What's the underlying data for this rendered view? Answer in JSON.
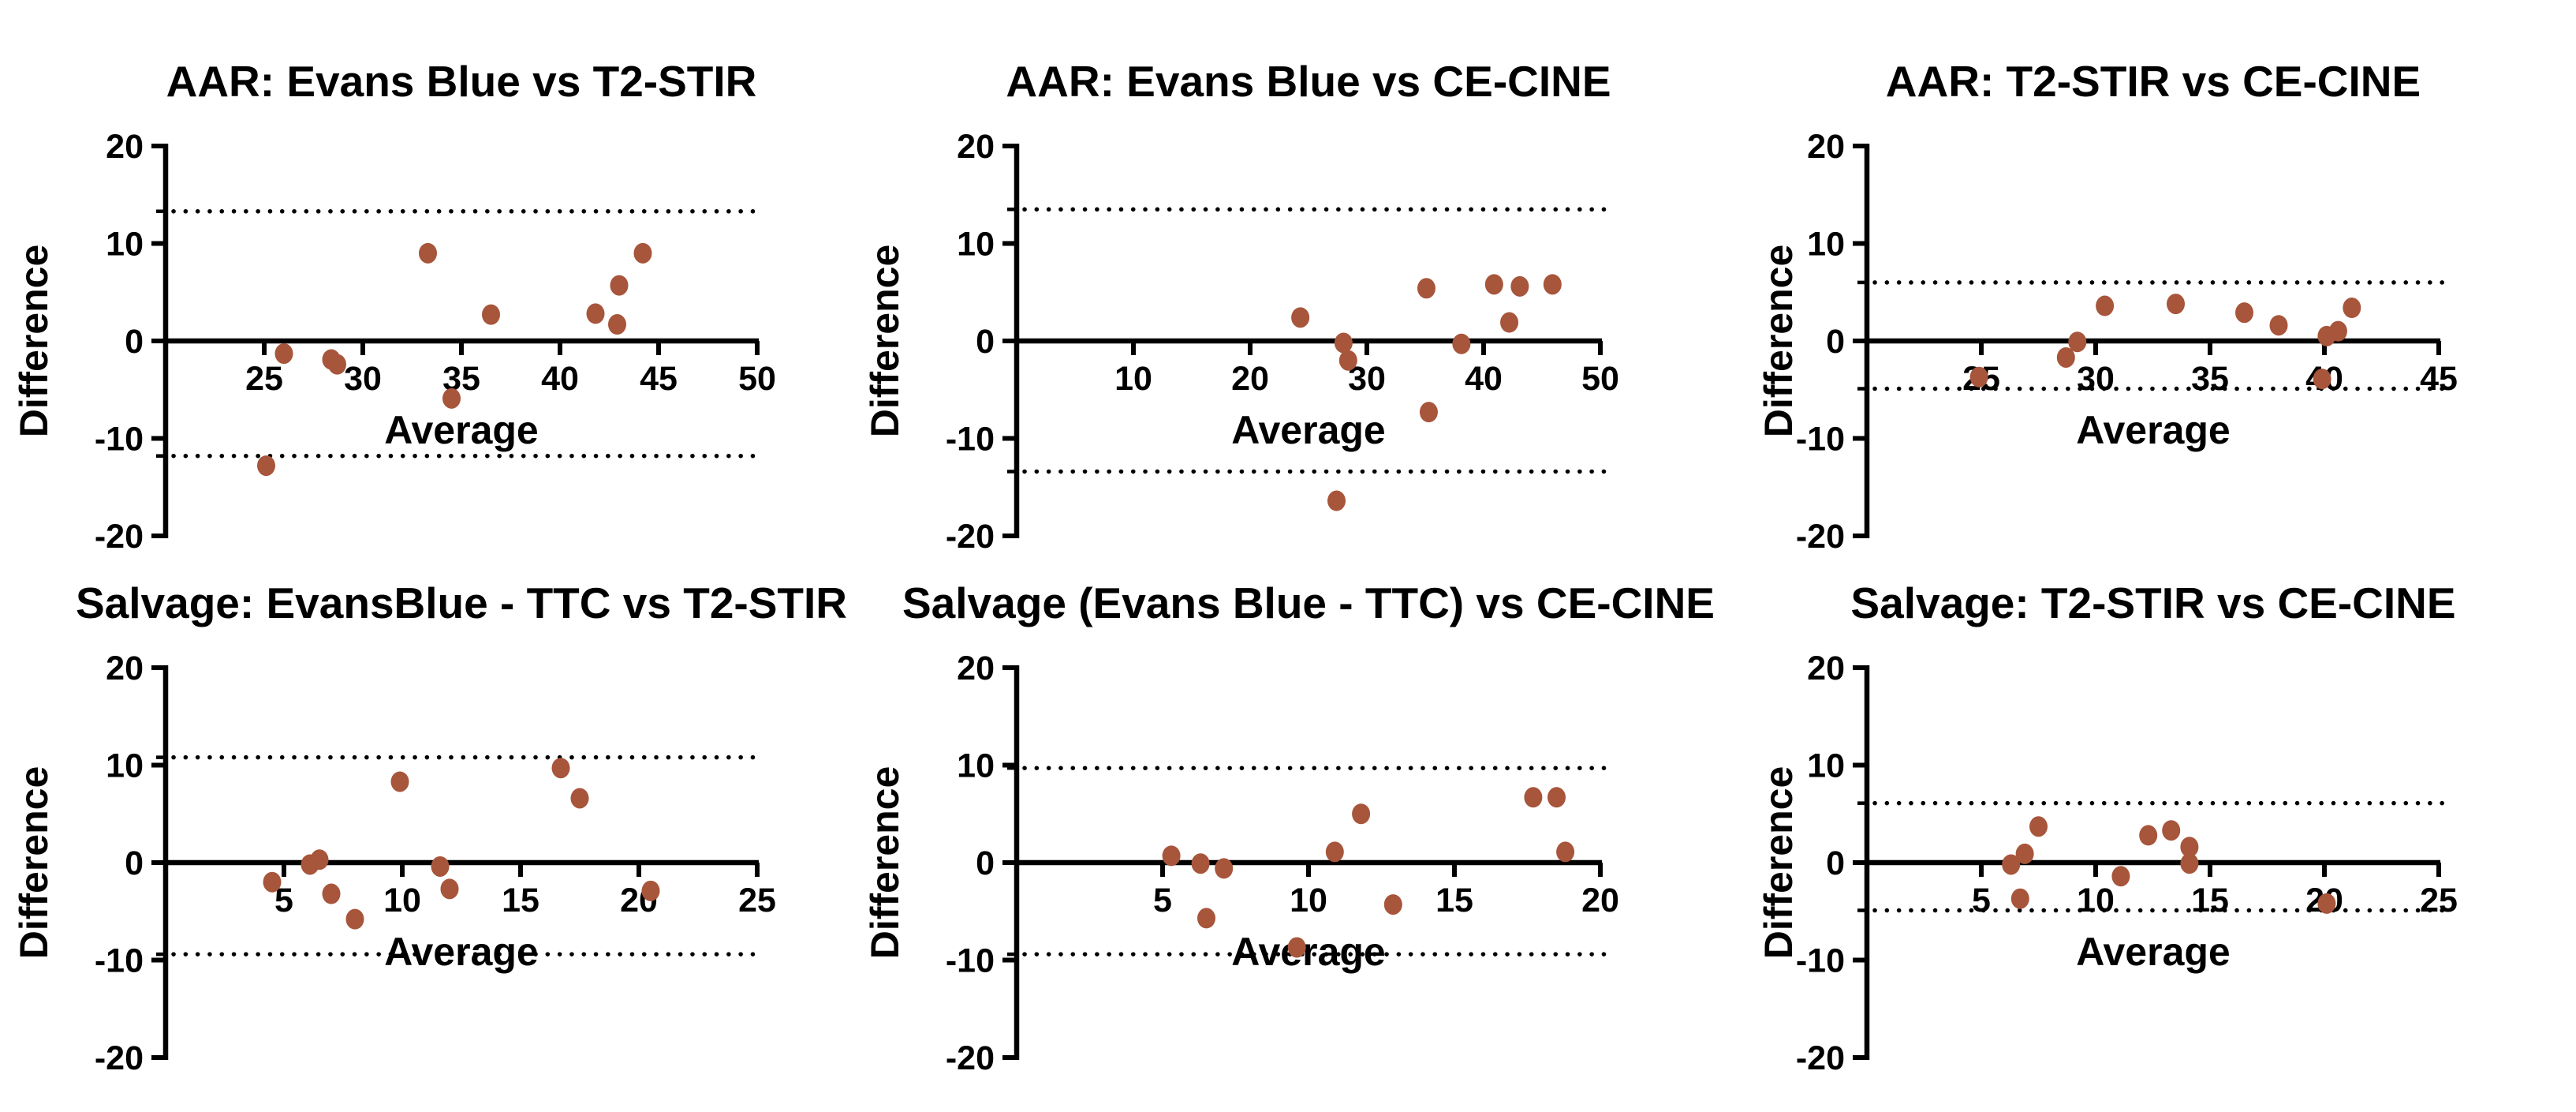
{
  "figure": {
    "background": "#ffffff",
    "marker_color": "#A7553B",
    "axis_color": "#000000",
    "loa_line_style": "dotted"
  },
  "chart_data": [
    {
      "type": "scatter",
      "title": "AAR: Evans Blue vs T2-STIR",
      "xlabel": "Average",
      "ylabel": "Difference",
      "xlim": [
        20,
        50
      ],
      "ylim": [
        -20,
        20
      ],
      "xticks": [
        25,
        30,
        35,
        40,
        45,
        50
      ],
      "yticks": [
        20,
        10,
        0,
        -10,
        -20
      ],
      "loa_upper": 13.3,
      "loa_lower": -11.8,
      "points": [
        [
          33.3,
          9.0
        ],
        [
          44.2,
          9.0
        ],
        [
          43.0,
          5.7
        ],
        [
          36.5,
          2.7
        ],
        [
          41.8,
          2.8
        ],
        [
          42.9,
          1.7
        ],
        [
          26.0,
          -1.3
        ],
        [
          28.4,
          -1.9
        ],
        [
          28.7,
          -2.4
        ],
        [
          34.5,
          -5.9
        ],
        [
          25.1,
          -12.8
        ]
      ]
    },
    {
      "type": "scatter",
      "title": "AAR: Evans Blue vs CE-CINE",
      "xlabel": "Average",
      "ylabel": "Difference",
      "xlim": [
        0,
        50
      ],
      "ylim": [
        -20,
        20
      ],
      "xticks": [
        10,
        20,
        30,
        40,
        50
      ],
      "yticks": [
        20,
        10,
        0,
        -10,
        -20
      ],
      "loa_upper": 13.5,
      "loa_lower": -13.4,
      "points": [
        [
          24.3,
          2.4
        ],
        [
          35.1,
          5.4
        ],
        [
          40.9,
          5.8
        ],
        [
          43.1,
          5.6
        ],
        [
          45.9,
          5.8
        ],
        [
          42.2,
          1.9
        ],
        [
          28.0,
          -0.2
        ],
        [
          28.4,
          -2.0
        ],
        [
          38.1,
          -0.3
        ],
        [
          35.3,
          -7.3
        ],
        [
          27.4,
          -16.4
        ]
      ]
    },
    {
      "type": "scatter",
      "title": "AAR: T2-STIR vs CE-CINE",
      "xlabel": "Average",
      "ylabel": "Difference",
      "xlim": [
        20,
        45
      ],
      "ylim": [
        -20,
        20
      ],
      "xticks": [
        25,
        30,
        35,
        40,
        45
      ],
      "yticks": [
        20,
        10,
        0,
        -10,
        -20
      ],
      "loa_upper": 6.0,
      "loa_lower": -4.9,
      "points": [
        [
          30.4,
          3.6
        ],
        [
          33.5,
          3.8
        ],
        [
          36.5,
          2.9
        ],
        [
          38.0,
          1.6
        ],
        [
          41.2,
          3.4
        ],
        [
          40.6,
          1.0
        ],
        [
          40.1,
          0.5
        ],
        [
          29.2,
          -0.1
        ],
        [
          28.7,
          -1.7
        ],
        [
          24.9,
          -3.7
        ],
        [
          39.9,
          -3.9
        ]
      ]
    },
    {
      "type": "scatter",
      "title": "Salvage: EvansBlue - TTC vs T2-STIR",
      "xlabel": "Average",
      "ylabel": "Difference",
      "xlim": [
        0,
        25
      ],
      "ylim": [
        -20,
        20
      ],
      "xticks": [
        5,
        10,
        15,
        20,
        25
      ],
      "yticks": [
        20,
        10,
        0,
        -10,
        -20
      ],
      "loa_upper": 10.8,
      "loa_lower": -9.4,
      "points": [
        [
          9.9,
          8.3
        ],
        [
          16.7,
          9.7
        ],
        [
          17.5,
          6.6
        ],
        [
          6.1,
          -0.2
        ],
        [
          6.5,
          0.3
        ],
        [
          4.5,
          -2.0
        ],
        [
          11.6,
          -0.4
        ],
        [
          12.0,
          -2.7
        ],
        [
          7.0,
          -3.2
        ],
        [
          8.0,
          -5.8
        ],
        [
          20.5,
          -2.9
        ]
      ]
    },
    {
      "type": "scatter",
      "title": "Salvage (Evans Blue - TTC) vs CE-CINE",
      "xlabel": "Average",
      "ylabel": "Difference",
      "xlim": [
        0,
        20
      ],
      "ylim": [
        -20,
        20
      ],
      "xticks": [
        5,
        10,
        15,
        20
      ],
      "yticks": [
        20,
        10,
        0,
        -10,
        -20
      ],
      "loa_upper": 9.7,
      "loa_lower": -9.4,
      "points": [
        [
          5.3,
          0.7
        ],
        [
          6.3,
          -0.1
        ],
        [
          7.1,
          -0.6
        ],
        [
          6.5,
          -5.7
        ],
        [
          10.9,
          1.1
        ],
        [
          11.8,
          5.0
        ],
        [
          12.9,
          -4.3
        ],
        [
          9.6,
          -8.7
        ],
        [
          17.7,
          6.7
        ],
        [
          18.5,
          6.7
        ],
        [
          18.8,
          1.1
        ]
      ]
    },
    {
      "type": "scatter",
      "title": "Salvage: T2-STIR vs CE-CINE",
      "xlabel": "Average",
      "ylabel": "Difference",
      "xlim": [
        0,
        25
      ],
      "ylim": [
        -20,
        20
      ],
      "xticks": [
        5,
        10,
        15,
        20,
        25
      ],
      "yticks": [
        20,
        10,
        0,
        -10,
        -20
      ],
      "loa_upper": 6.1,
      "loa_lower": -4.9,
      "points": [
        [
          6.3,
          -0.2
        ],
        [
          6.9,
          0.9
        ],
        [
          7.5,
          3.7
        ],
        [
          6.7,
          -3.7
        ],
        [
          11.1,
          -1.4
        ],
        [
          12.3,
          2.8
        ],
        [
          13.3,
          3.3
        ],
        [
          14.1,
          1.6
        ],
        [
          14.1,
          -0.1
        ],
        [
          20.1,
          -4.2
        ]
      ]
    }
  ]
}
